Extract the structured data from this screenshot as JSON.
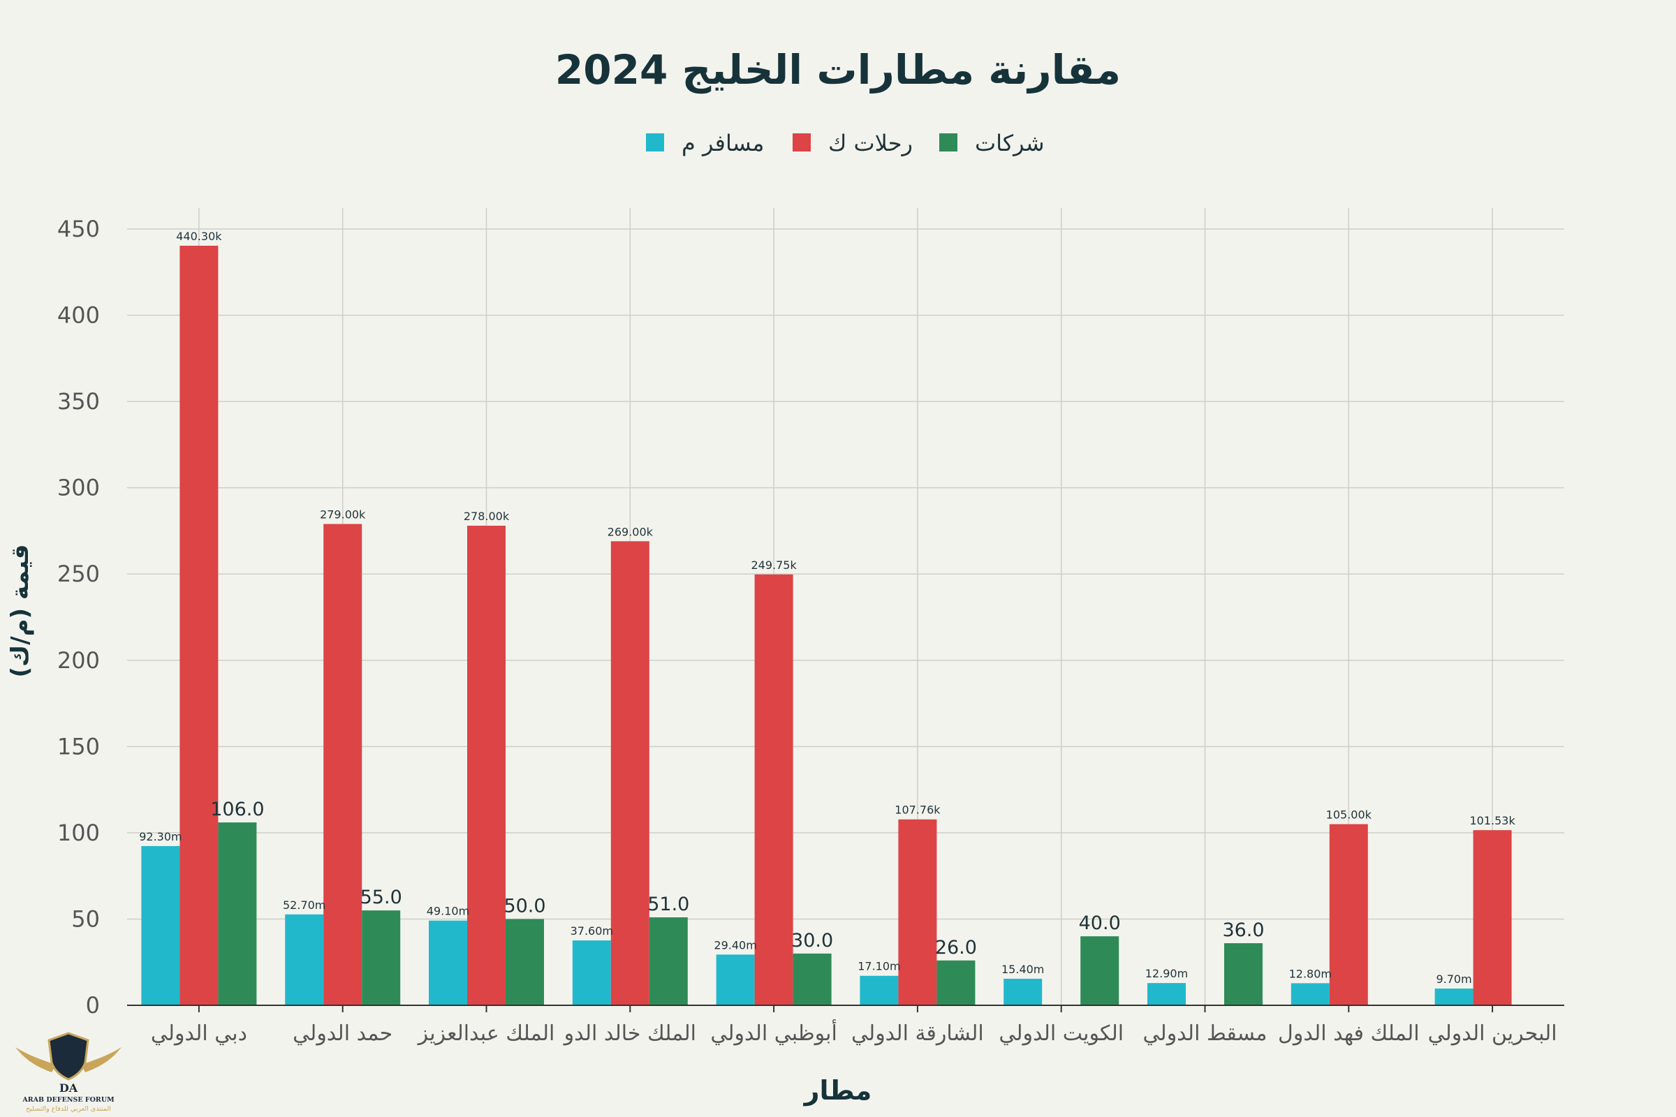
{
  "chart_data": {
    "type": "bar",
    "title": "مقارنة مطارات الخليج 2024",
    "xlabel": "مطار",
    "ylabel": "قيمة (م/ك)",
    "ylim": [
      0,
      450
    ],
    "yticks": [
      0,
      50,
      100,
      150,
      200,
      250,
      300,
      350,
      400,
      450
    ],
    "grid": true,
    "legend_position": "top-center",
    "categories": [
      "دبي الدولي",
      "حمد الدولي",
      "الملك عبدالعزيز",
      "الملك خالد الدو",
      "أبوظبي الدولي",
      "الشارقة الدولي",
      "الكويت الدولي",
      "مسقط الدولي",
      "الملك فهد الدول",
      "البحرين الدولي"
    ],
    "series": [
      {
        "name": "مسافر م",
        "color": "#22b8cc",
        "values": [
          92.3,
          52.7,
          49.1,
          37.6,
          29.4,
          17.1,
          15.4,
          12.9,
          12.8,
          9.7
        ],
        "labels": [
          "92.30m",
          "52.70m",
          "49.10m",
          "37.60m",
          "29.40m",
          "17.10m",
          "15.40m",
          "12.90m",
          "12.80m",
          "9.70m"
        ]
      },
      {
        "name": "رحلات ك",
        "color": "#dc4446",
        "values": [
          440.3,
          279.0,
          278.0,
          269.0,
          249.75,
          107.76,
          null,
          null,
          105.0,
          101.53
        ],
        "labels": [
          "440.30k",
          "279.00k",
          "278.00k",
          "269.00k",
          "249.75k",
          "107.76k",
          null,
          null,
          "105.00k",
          "101.53k"
        ]
      },
      {
        "name": "شركات",
        "color": "#2e8b57",
        "values": [
          106.0,
          55.0,
          50.0,
          51.0,
          30.0,
          26.0,
          40.0,
          36.0,
          null,
          null
        ],
        "labels": [
          "106.0",
          "55.0",
          "50.0",
          "51.0",
          "30.0",
          "26.0",
          "40.0",
          "36.0",
          null,
          null
        ]
      }
    ]
  },
  "logo": {
    "text_en": "ARAB DEFENSE FORUM",
    "text_ar": "المنتدى العربي للدفاع والتسليح",
    "mark": "DA"
  }
}
